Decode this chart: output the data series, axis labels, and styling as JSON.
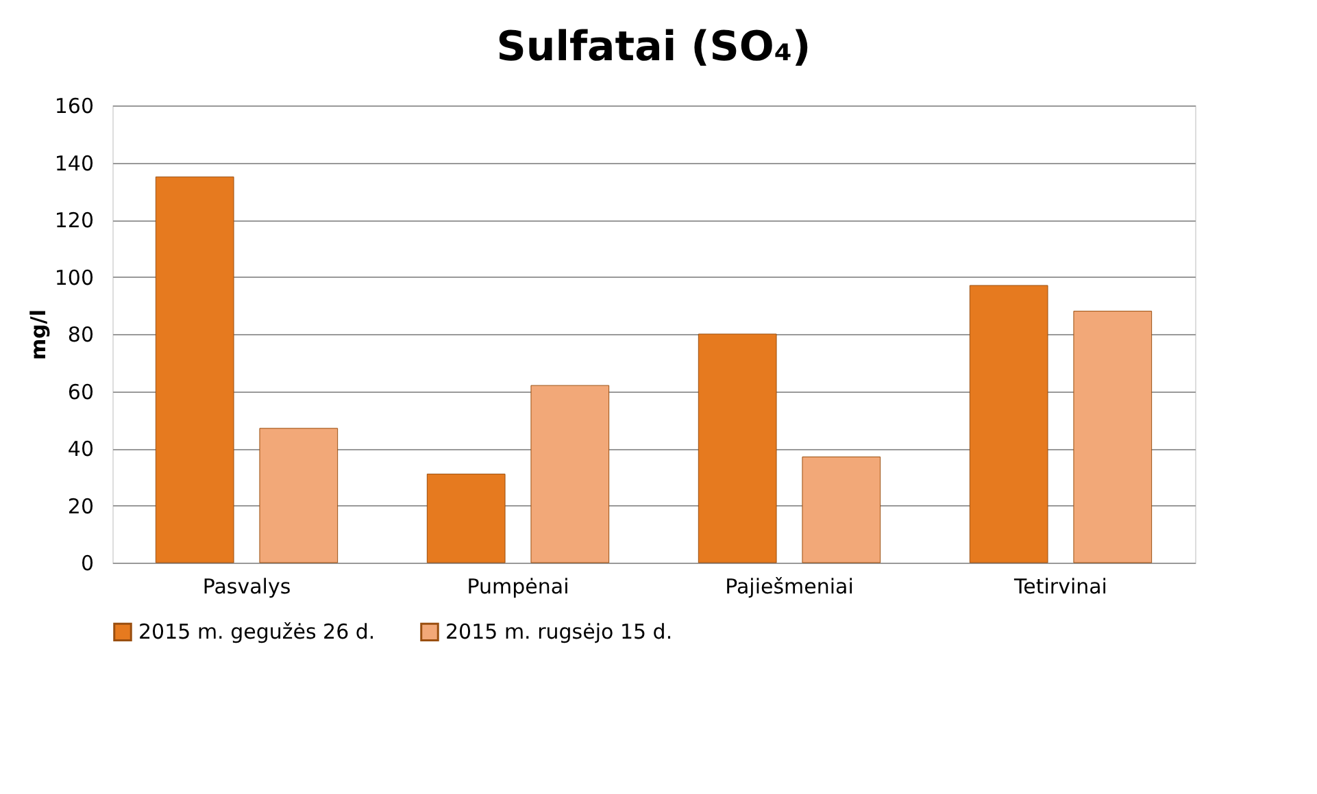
{
  "chart_data": {
    "type": "bar",
    "title": "Sulfatai (SO₄)",
    "ylabel": "mg/l",
    "categories": [
      "Pasvalys",
      "Pumpėnai",
      "Pajiešmeniai",
      "Tetirvinai"
    ],
    "series": [
      {
        "name": "2015 m. gegužės 26 d.",
        "color": "#e67a1f",
        "values": [
          135,
          31,
          80,
          97
        ]
      },
      {
        "name": "2015 m. rugsėjo 15 d.",
        "color": "#f2a878",
        "values": [
          47,
          62,
          37,
          88
        ]
      }
    ],
    "ylim": [
      0,
      160
    ],
    "yticks": [
      0,
      20,
      40,
      60,
      80,
      100,
      120,
      140,
      160
    ],
    "grid": "y",
    "legend": "bottom"
  }
}
